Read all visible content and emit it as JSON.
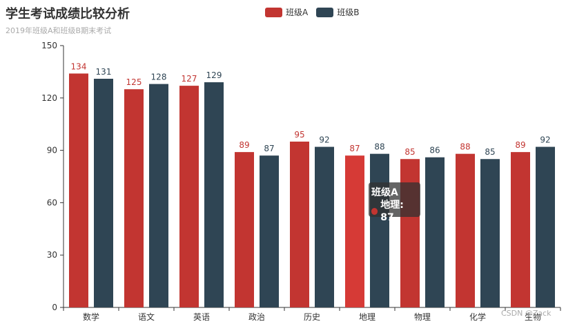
{
  "chart_data": {
    "type": "bar",
    "title": "学生考试成绩比较分析",
    "subtitle": "2019年班级A和班级B期末考试",
    "categories": [
      "数学",
      "语文",
      "英语",
      "政治",
      "历史",
      "地理",
      "物理",
      "化学",
      "生物"
    ],
    "series": [
      {
        "name": "班级A",
        "color": "#c23531",
        "values": [
          134,
          125,
          127,
          89,
          95,
          87,
          85,
          88,
          89
        ]
      },
      {
        "name": "班级B",
        "color": "#2f4554",
        "values": [
          131,
          128,
          129,
          87,
          92,
          88,
          86,
          85,
          92
        ]
      }
    ],
    "yticks": [
      0,
      30,
      60,
      90,
      120,
      150
    ],
    "ylim": [
      0,
      150
    ],
    "legend_position": "top-center",
    "show_data_labels": true,
    "highlight": {
      "series": 0,
      "category": 5,
      "color": "#d63a36"
    }
  },
  "tooltip": {
    "series_name": "班级A",
    "item_text": "地理: 87"
  },
  "watermark": "CSDN @Zack"
}
